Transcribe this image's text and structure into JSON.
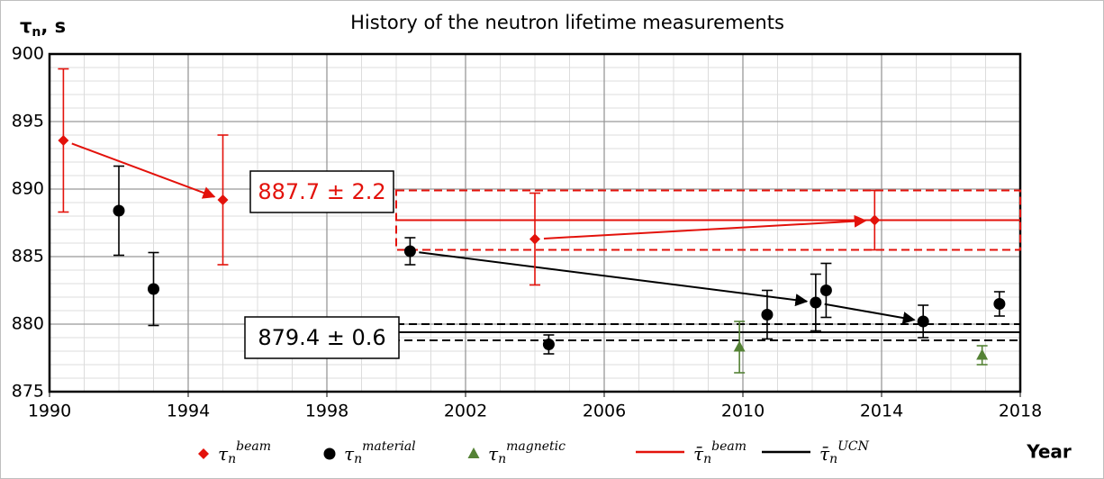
{
  "chart_data": {
    "type": "errorbar",
    "title": "History of the neutron lifetime measurements",
    "y_label": {
      "base": "τ",
      "sub": "n",
      "rest": ", s"
    },
    "x_label": "Year",
    "xlim": [
      1990,
      2018
    ],
    "xticks": [
      1990,
      1994,
      1998,
      2002,
      2006,
      2010,
      2014,
      2018
    ],
    "ylim": [
      875,
      900
    ],
    "yticks": [
      875,
      880,
      885,
      890,
      895,
      900
    ],
    "grid": true,
    "minor_xstep": 1,
    "minor_ystep": 1,
    "legend": "bottom",
    "series": [
      {
        "name": {
          "base": "τ",
          "sub": "n",
          "sup": "beam"
        },
        "marker": "diamond",
        "color": "#e3120b",
        "x": [
          1990.4,
          1995.0,
          2004.0,
          2013.8
        ],
        "values": [
          893.6,
          889.2,
          886.3,
          887.7
        ],
        "errors": [
          5.3,
          4.8,
          3.4,
          2.2
        ]
      },
      {
        "name": {
          "base": "τ",
          "sub": "n",
          "sup": "material"
        },
        "marker": "circle",
        "color": "#000000",
        "x": [
          1992.0,
          1993.0,
          2000.4,
          2004.4,
          2010.7,
          2012.1,
          2012.4,
          2015.2,
          2017.4
        ],
        "values": [
          888.4,
          882.6,
          885.4,
          878.5,
          880.7,
          881.6,
          882.5,
          880.2,
          881.5
        ],
        "errors": [
          3.3,
          2.7,
          1.0,
          0.7,
          1.8,
          2.1,
          2.0,
          1.2,
          0.9
        ]
      },
      {
        "name": {
          "base": "τ",
          "sub": "n",
          "sup": "magnetic"
        },
        "marker": "triangle",
        "color": "#548235",
        "x": [
          2009.9,
          2016.9
        ],
        "values": [
          878.3,
          877.7
        ],
        "errors": [
          1.9,
          0.7
        ]
      }
    ],
    "averages": [
      {
        "name": {
          "base": "τ̄",
          "sub": "n",
          "sup": "beam"
        },
        "color": "#e3120b",
        "value": 887.7,
        "error": 2.2,
        "x": [
          2000,
          2018
        ]
      },
      {
        "name": {
          "base": "τ̄",
          "sub": "n",
          "sup": "UCN"
        },
        "color": "#000000",
        "value": 879.4,
        "error": 0.6,
        "x": [
          2000,
          2018
        ]
      }
    ],
    "annotations": [
      {
        "text": "887.7 ± 2.2",
        "color": "#e3120b"
      },
      {
        "text": "879.4 ± 0.6",
        "color": "#000000"
      }
    ]
  }
}
